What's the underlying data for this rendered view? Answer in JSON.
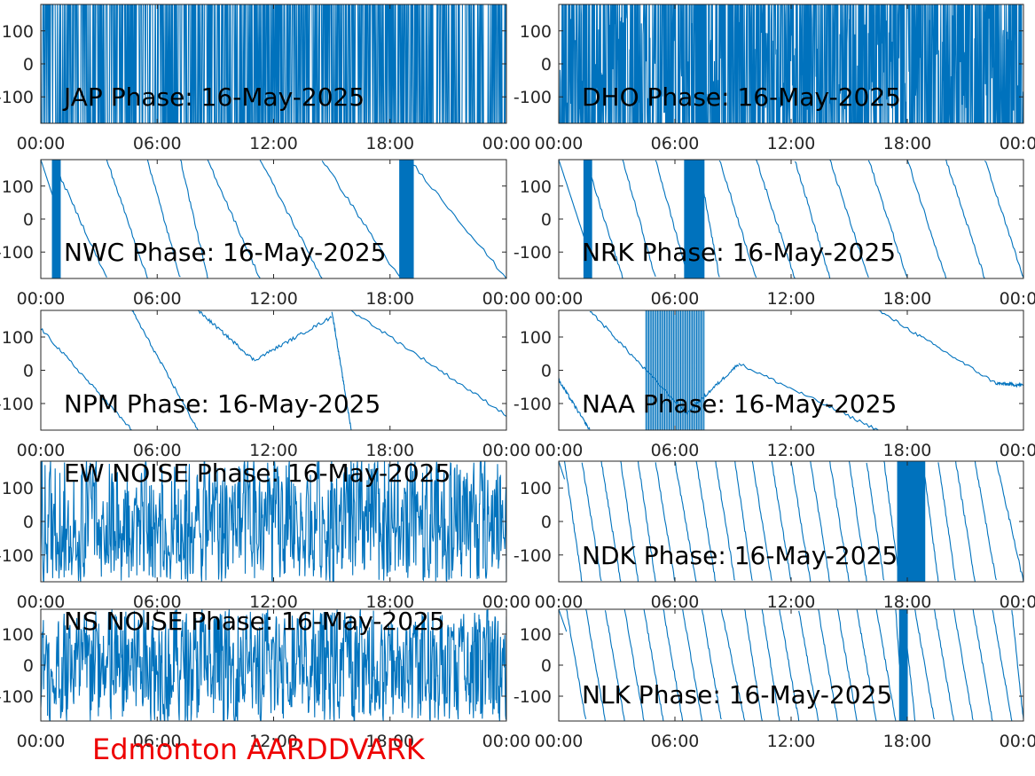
{
  "figure": {
    "footer_text": "Edmonton AARDDVARK",
    "footer_color": "#ee0000",
    "line_color": "#0072bd",
    "x_tick_labels": [
      "00:00",
      "06:00",
      "12:00",
      "18:00",
      "00:00"
    ],
    "y_tick_labels": [
      "100",
      "0",
      "-100"
    ]
  },
  "chart_data": [
    {
      "type": "line",
      "title": "JAP Phase: 16-May-2025",
      "title_position": "bottom-left",
      "xlim": [
        0,
        24
      ],
      "ylim": [
        -180,
        180
      ],
      "grid": false,
      "waveform": "dense",
      "density": 1.0,
      "events": []
    },
    {
      "type": "line",
      "title": "DHO Phase: 16-May-2025",
      "title_position": "bottom-left",
      "xlim": [
        0,
        24
      ],
      "ylim": [
        -180,
        180
      ],
      "grid": false,
      "waveform": "dense_fast",
      "density": 0.8,
      "events": [
        [
          7.1,
          7.6
        ]
      ]
    },
    {
      "type": "line",
      "title": "NWC Phase: 16-May-2025",
      "title_position": "bottom-left",
      "xlim": [
        0,
        24
      ],
      "ylim": [
        -180,
        180
      ],
      "grid": false,
      "waveform": "sawtooth",
      "wraps": [
        0.6,
        3.4,
        5.5,
        7.2,
        8.6,
        11.3,
        14.5,
        18.5,
        19.0,
        24.0
      ],
      "events": [
        [
          0.6,
          1.0
        ],
        [
          18.5,
          19.2
        ]
      ]
    },
    {
      "type": "line",
      "title": "NRK Phase: 16-May-2025",
      "title_position": "bottom-left",
      "xlim": [
        0,
        24
      ],
      "ylim": [
        -180,
        180
      ],
      "grid": false,
      "waveform": "sawtooth",
      "wraps": [
        1.4,
        3.3,
        5.0,
        6.7,
        7.2,
        8.3,
        10.2,
        12.2,
        14.0,
        16.0,
        18.0,
        20.0,
        22.0,
        24.0
      ],
      "events": [
        [
          1.3,
          1.7
        ],
        [
          6.5,
          7.5
        ]
      ]
    },
    {
      "type": "line",
      "title": "NPM Phase: 16-May-2025",
      "title_position": "bottom-left",
      "xlim": [
        0,
        24
      ],
      "ylim": [
        -180,
        180
      ],
      "grid": false,
      "waveform": "segments",
      "segments": [
        [
          0,
          125,
          4.7,
          -180
        ],
        [
          4.7,
          180,
          8.1,
          -180
        ],
        [
          8.1,
          180,
          11.0,
          30
        ],
        [
          11.0,
          30,
          15.0,
          160
        ],
        [
          15.0,
          180,
          16.0,
          -180
        ],
        [
          16.0,
          180,
          24.0,
          -135
        ]
      ],
      "events": []
    },
    {
      "type": "line",
      "title": "NAA Phase: 16-May-2025",
      "title_position": "bottom-left",
      "xlim": [
        0,
        24
      ],
      "ylim": [
        -180,
        180
      ],
      "grid": false,
      "waveform": "segments",
      "segments": [
        [
          0,
          -30,
          1.6,
          -180
        ],
        [
          1.6,
          180,
          6.6,
          -130
        ],
        [
          6.6,
          -130,
          9.3,
          20
        ],
        [
          9.3,
          20,
          16.5,
          -180
        ],
        [
          16.5,
          180,
          22.6,
          -40
        ],
        [
          22.6,
          -40,
          24.0,
          -45
        ]
      ],
      "events": [
        [
          4.5,
          7.5
        ]
      ]
    },
    {
      "type": "line",
      "title": "EW NOISE Phase: 16-May-2025",
      "title_position": "top-left",
      "xlim": [
        0,
        24
      ],
      "ylim": [
        -180,
        180
      ],
      "grid": false,
      "waveform": "noise",
      "density": 0.6,
      "events": []
    },
    {
      "type": "line",
      "title": "NDK Phase: 16-May-2025",
      "title_position": "bottom-left",
      "xlim": [
        0,
        24
      ],
      "ylim": [
        -180,
        180
      ],
      "grid": false,
      "waveform": "sawtooth",
      "wraps": [
        0.3,
        1.2,
        2.2,
        3.2,
        4.1,
        5.0,
        6.0,
        7.1,
        8.1,
        9.1,
        10.0,
        11.0,
        12.0,
        13.0,
        14.0,
        15.0,
        15.9,
        16.8,
        17.6,
        18.2,
        18.8,
        19.6,
        20.5,
        21.5,
        22.6,
        24.0
      ],
      "events": [
        [
          17.5,
          18.9
        ]
      ]
    },
    {
      "type": "line",
      "title": "NS NOISE Phase: 16-May-2025",
      "title_position": "top-left",
      "xlim": [
        0,
        24
      ],
      "ylim": [
        -180,
        180
      ],
      "grid": false,
      "waveform": "noise",
      "density": 0.65,
      "events": []
    },
    {
      "type": "line",
      "title": "NLK Phase: 16-May-2025",
      "title_position": "bottom-left",
      "xlim": [
        0,
        24
      ],
      "ylim": [
        -180,
        180
      ],
      "grid": false,
      "waveform": "sawtooth",
      "wraps": [
        0.4,
        1.4,
        2.4,
        3.4,
        4.4,
        5.4,
        6.4,
        7.4,
        8.4,
        9.6,
        10.5,
        11.4,
        12.4,
        13.4,
        14.4,
        15.4,
        16.4,
        17.4,
        17.8,
        18.4,
        19.4,
        20.4,
        21.4,
        22.4,
        23.4,
        24.0
      ],
      "events": [
        [
          17.6,
          18.0
        ]
      ]
    }
  ]
}
